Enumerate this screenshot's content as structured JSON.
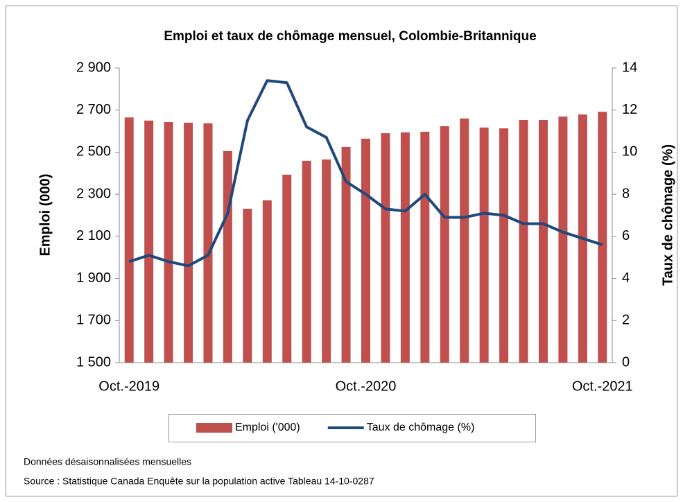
{
  "chart_data": {
    "type": "bar_line",
    "title": "Emploi et taux de chômage mensuel, Colombie-Britannique",
    "y_label": "Emploi (000)",
    "y2_label": "Taux de chômage (%)",
    "categories": [
      "Oct.-2019",
      null,
      null,
      null,
      null,
      null,
      null,
      null,
      null,
      null,
      null,
      null,
      "Oct.-2020",
      null,
      null,
      null,
      null,
      null,
      null,
      null,
      null,
      null,
      null,
      null,
      "Oct.-2021"
    ],
    "series": [
      {
        "name": "Emploi ('000)",
        "type": "bar",
        "color": "#c0504d",
        "values": [
          2665,
          2650,
          2643,
          2640,
          2637,
          2505,
          2231,
          2271,
          2393,
          2459,
          2465,
          2525,
          2564,
          2590,
          2594,
          2597,
          2623,
          2660,
          2617,
          2613,
          2653,
          2653,
          2669,
          2679,
          2692
        ]
      },
      {
        "name": "Taux de chômage (%)",
        "type": "line",
        "axis": "y2",
        "color": "#1f497d",
        "values": [
          4.8,
          5.1,
          4.8,
          4.6,
          5.1,
          7.1,
          11.5,
          13.4,
          13.3,
          11.2,
          10.7,
          8.6,
          8.0,
          7.3,
          7.2,
          8.0,
          6.9,
          6.9,
          7.1,
          7.0,
          6.6,
          6.6,
          6.2,
          5.9,
          5.6
        ]
      }
    ],
    "ylim": [
      1500,
      2900
    ],
    "yticks": [
      {
        "value": 1500,
        "label": "1 500"
      },
      {
        "value": 1700,
        "label": "1 700"
      },
      {
        "value": 1900,
        "label": "1 900"
      },
      {
        "value": 2100,
        "label": "2 100"
      },
      {
        "value": 2300,
        "label": "2 300"
      },
      {
        "value": 2500,
        "label": "2 500"
      },
      {
        "value": 2700,
        "label": "2 700"
      },
      {
        "value": 2900,
        "label": "2 900"
      }
    ],
    "y2lim": [
      0,
      14
    ],
    "y2ticks": [
      0,
      2,
      4,
      6,
      8,
      10,
      12,
      14
    ],
    "legend": "bottom",
    "notes": [
      "Données désaisonnalisées mensuelles",
      "Source : Statistique Canada Enquête sur la population active Tableau 14-10-0287"
    ]
  }
}
